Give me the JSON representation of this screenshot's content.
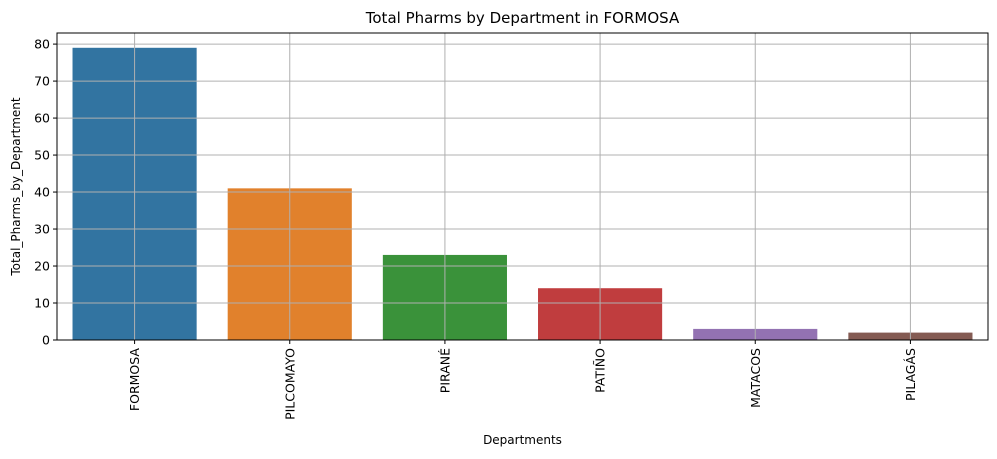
{
  "chart_data": {
    "type": "bar",
    "title": "Total Pharms by Department in FORMOSA",
    "xlabel": "Departments",
    "ylabel": "Total_Pharms_by_Department",
    "categories": [
      "FORMOSA",
      "PILCOMAYO",
      "PIRANÉ",
      "PATIÑO",
      "MATACOS",
      "PILAGÁS"
    ],
    "values": [
      79,
      41,
      23,
      14,
      3,
      2
    ],
    "colors": [
      "#3274a1",
      "#e1812c",
      "#3a923a",
      "#c03d3e",
      "#9372b2",
      "#845b53"
    ],
    "ylim": [
      0,
      83
    ],
    "yticks": [
      0,
      10,
      20,
      30,
      40,
      50,
      60,
      70,
      80
    ],
    "grid": true,
    "xtick_rotation": 90
  }
}
